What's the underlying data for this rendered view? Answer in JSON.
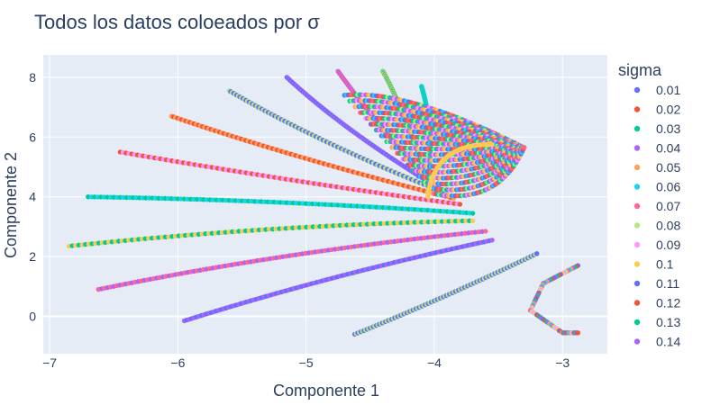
{
  "chart_data": {
    "type": "scatter",
    "title": "Todos los datos coloeados por σ",
    "xlabel": "Componente 1",
    "ylabel": "Componente 2",
    "xlim": [
      -7.05,
      -2.65
    ],
    "ylim": [
      -1.25,
      8.75
    ],
    "x_ticks": [
      -7,
      -6,
      -5,
      -4,
      -3
    ],
    "y_ticks": [
      0,
      2,
      4,
      6,
      8
    ],
    "x_tick_labels": [
      "−7",
      "−6",
      "−5",
      "−4",
      "−3"
    ],
    "y_tick_labels": [
      "0",
      "2",
      "4",
      "6",
      "8"
    ],
    "grid": true,
    "legend_title": "sigma",
    "legend_position": "right",
    "series_colors": [
      "#636efa",
      "#EF553B",
      "#00cc96",
      "#ab63fa",
      "#FFA15A",
      "#19d3f3",
      "#FF6692",
      "#B6E880",
      "#FF97FF",
      "#FECB52",
      "#636efa",
      "#EF553B",
      "#00cc96",
      "#ab63fa"
    ],
    "series": [
      {
        "name": "0.01"
      },
      {
        "name": "0.02"
      },
      {
        "name": "0.03"
      },
      {
        "name": "0.04"
      },
      {
        "name": "0.05"
      },
      {
        "name": "0.06"
      },
      {
        "name": "0.07"
      },
      {
        "name": "0.08"
      },
      {
        "name": "0.09"
      },
      {
        "name": "0.1"
      },
      {
        "name": "0.11"
      },
      {
        "name": "0.12"
      },
      {
        "name": "0.13"
      },
      {
        "name": "0.14"
      }
    ],
    "curves": [
      {
        "start": [
          -4.62,
          -0.6
        ],
        "mid": [
          -3.9,
          0.65
        ],
        "end": [
          -3.2,
          2.1
        ]
      },
      {
        "start": [
          -5.95,
          -0.15
        ],
        "mid": [
          -4.8,
          1.4
        ],
        "end": [
          -3.55,
          2.55
        ]
      },
      {
        "start": [
          -6.62,
          0.9
        ],
        "mid": [
          -5.2,
          2.15
        ],
        "end": [
          -3.6,
          2.85
        ]
      },
      {
        "start": [
          -6.85,
          2.35
        ],
        "mid": [
          -5.3,
          3.05
        ],
        "end": [
          -3.7,
          3.2
        ]
      },
      {
        "start": [
          -6.7,
          4.0
        ],
        "mid": [
          -5.2,
          3.9
        ],
        "end": [
          -3.7,
          3.45
        ]
      },
      {
        "start": [
          -6.45,
          5.5
        ],
        "mid": [
          -5.1,
          4.5
        ],
        "end": [
          -3.8,
          3.75
        ]
      },
      {
        "start": [
          -6.05,
          6.7
        ],
        "mid": [
          -5.1,
          5.3
        ],
        "end": [
          -3.85,
          3.95
        ]
      },
      {
        "start": [
          -5.6,
          7.55
        ],
        "mid": [
          -4.9,
          5.8
        ],
        "end": [
          -3.9,
          4.1
        ]
      },
      {
        "start": [
          -5.15,
          8.0
        ],
        "mid": [
          -4.7,
          6.2
        ],
        "end": [
          -3.95,
          4.25
        ]
      },
      {
        "start": [
          -4.75,
          8.2
        ],
        "mid": [
          -4.45,
          6.4
        ],
        "end": [
          -4.0,
          4.35
        ]
      },
      {
        "start": [
          -4.4,
          8.2
        ],
        "mid": [
          -4.2,
          6.6
        ],
        "end": [
          -4.05,
          4.45
        ]
      },
      {
        "start": [
          -4.1,
          7.7
        ],
        "mid": [
          -4.0,
          6.3
        ],
        "end": [
          -4.05,
          4.55
        ]
      }
    ],
    "fan": {
      "apex": [
        -3.3,
        5.65
      ],
      "upper_left": [
        -4.7,
        7.4
      ],
      "lower_left": [
        -4.0,
        4.1
      ],
      "yellow_arc_tip": [
        -3.55,
        5.75
      ]
    },
    "bottom_right_arc": [
      [
        -2.88,
        1.7
      ],
      [
        -3.15,
        1.1
      ],
      [
        -3.25,
        0.2
      ],
      [
        -3.0,
        -0.55
      ],
      [
        -2.88,
        -0.55
      ]
    ]
  }
}
